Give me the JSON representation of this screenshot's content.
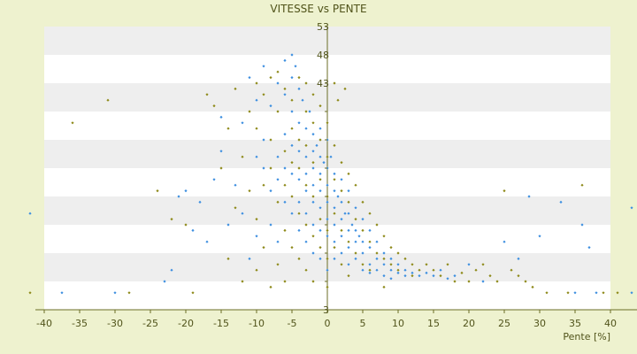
{
  "chart_data": {
    "type": "scatter",
    "title": "VITESSE vs PENTE",
    "xlabel": "Pente [%]",
    "ylabel": "",
    "xlim": [
      -40,
      40
    ],
    "ylim": [
      3,
      53
    ],
    "x_ticks": [
      -40,
      -35,
      -30,
      -25,
      -20,
      -15,
      -10,
      -5,
      0,
      5,
      10,
      15,
      20,
      25,
      30,
      35,
      40
    ],
    "y_ticks": [
      3,
      8,
      13,
      18,
      23,
      28,
      33,
      38,
      43,
      48,
      53
    ],
    "y_tick_labels_shown": [
      3,
      43,
      48,
      53
    ],
    "grid": "horizontal banded",
    "legend": "none",
    "colors": {
      "background": "#eef2cf",
      "plot_band_light": "#ffffff",
      "plot_band_dark": "#eeeeee",
      "axis": "#6b6d25",
      "text": "#50531a",
      "series_blue": "#3d8fe0",
      "series_olive": "#8e8a1a"
    },
    "series": [
      {
        "name": "",
        "color": "#3d8fe0",
        "marker": "diamond",
        "points": [
          [
            -42,
            20
          ],
          [
            -37.5,
            6
          ],
          [
            -30,
            6
          ],
          [
            -23,
            8
          ],
          [
            -22,
            10
          ],
          [
            -21,
            23
          ],
          [
            -20,
            24
          ],
          [
            -19,
            17
          ],
          [
            -18,
            22
          ],
          [
            -17,
            15
          ],
          [
            -16,
            26
          ],
          [
            -15,
            31
          ],
          [
            -15,
            37
          ],
          [
            -14,
            18
          ],
          [
            -13,
            25
          ],
          [
            -12,
            36
          ],
          [
            -12,
            20
          ],
          [
            -11,
            44
          ],
          [
            -11,
            12
          ],
          [
            -10,
            40
          ],
          [
            -10,
            30
          ],
          [
            -10,
            16
          ],
          [
            -9,
            46
          ],
          [
            -9,
            28
          ],
          [
            -9,
            33
          ],
          [
            -8,
            39
          ],
          [
            -8,
            24
          ],
          [
            -8,
            18
          ],
          [
            -7,
            43
          ],
          [
            -7,
            30
          ],
          [
            -7,
            26
          ],
          [
            -7,
            15
          ],
          [
            -6,
            47
          ],
          [
            -6,
            41
          ],
          [
            -6,
            34
          ],
          [
            -6,
            28
          ],
          [
            -6,
            22
          ],
          [
            -5,
            48
          ],
          [
            -5,
            44
          ],
          [
            -5,
            38
          ],
          [
            -5,
            32
          ],
          [
            -5,
            27
          ],
          [
            -5,
            20
          ],
          [
            -4.5,
            46
          ],
          [
            -4,
            42
          ],
          [
            -4,
            36
          ],
          [
            -4,
            31
          ],
          [
            -4,
            26
          ],
          [
            -4,
            22
          ],
          [
            -4,
            17
          ],
          [
            -3.5,
            40
          ],
          [
            -3,
            35
          ],
          [
            -3,
            30
          ],
          [
            -3,
            27
          ],
          [
            -3,
            24
          ],
          [
            -3,
            20
          ],
          [
            -3,
            15
          ],
          [
            -2.5,
            38
          ],
          [
            -2,
            34
          ],
          [
            -2,
            31
          ],
          [
            -2,
            28
          ],
          [
            -2,
            25
          ],
          [
            -2,
            22
          ],
          [
            -2,
            18
          ],
          [
            -2,
            13
          ],
          [
            -1.5,
            32
          ],
          [
            -1,
            35
          ],
          [
            -1,
            30
          ],
          [
            -1,
            27
          ],
          [
            -1,
            24
          ],
          [
            -1,
            21
          ],
          [
            -1,
            17
          ],
          [
            -1,
            12
          ],
          [
            -0.5,
            29
          ],
          [
            0,
            33
          ],
          [
            0,
            28
          ],
          [
            0,
            25
          ],
          [
            0,
            22
          ],
          [
            0,
            19
          ],
          [
            0,
            16
          ],
          [
            0,
            10
          ],
          [
            0.5,
            30
          ],
          [
            1,
            27
          ],
          [
            1,
            24
          ],
          [
            1,
            21
          ],
          [
            1,
            18
          ],
          [
            1,
            15
          ],
          [
            1,
            12
          ],
          [
            1.5,
            23
          ],
          [
            2,
            26
          ],
          [
            2,
            22
          ],
          [
            2,
            19
          ],
          [
            2,
            16
          ],
          [
            2,
            13
          ],
          [
            2.5,
            20
          ],
          [
            3,
            24
          ],
          [
            3,
            20
          ],
          [
            3,
            17
          ],
          [
            3,
            14
          ],
          [
            3,
            11
          ],
          [
            3.5,
            18
          ],
          [
            4,
            21
          ],
          [
            4,
            17
          ],
          [
            4,
            15
          ],
          [
            4,
            12
          ],
          [
            4.5,
            16
          ],
          [
            5,
            19
          ],
          [
            5,
            15
          ],
          [
            5,
            13
          ],
          [
            5,
            10
          ],
          [
            6,
            17
          ],
          [
            6,
            14
          ],
          [
            6,
            11
          ],
          [
            6,
            9.5
          ],
          [
            7,
            15
          ],
          [
            7,
            12
          ],
          [
            7,
            10
          ],
          [
            8,
            13
          ],
          [
            8,
            11
          ],
          [
            8,
            9
          ],
          [
            9,
            12
          ],
          [
            9,
            10
          ],
          [
            9,
            8.5
          ],
          [
            10,
            11
          ],
          [
            10,
            9.5
          ],
          [
            11,
            10
          ],
          [
            11,
            9
          ],
          [
            12,
            9.5
          ],
          [
            13,
            9
          ],
          [
            14,
            9.5
          ],
          [
            15,
            9
          ],
          [
            16,
            10
          ],
          [
            17,
            8.5
          ],
          [
            18,
            9
          ],
          [
            20,
            11
          ],
          [
            22,
            8
          ],
          [
            25,
            15
          ],
          [
            27,
            12
          ],
          [
            28.5,
            23
          ],
          [
            30,
            16
          ],
          [
            33,
            22
          ],
          [
            35,
            6
          ],
          [
            36,
            18
          ],
          [
            37,
            14
          ],
          [
            38,
            6
          ],
          [
            43,
            21
          ],
          [
            43,
            6
          ]
        ]
      },
      {
        "name": "",
        "color": "#8e8a1a",
        "marker": "diamond",
        "points": [
          [
            -42,
            6
          ],
          [
            -36,
            36
          ],
          [
            -31,
            40
          ],
          [
            -28,
            6
          ],
          [
            -24,
            24
          ],
          [
            -22,
            19
          ],
          [
            -20,
            18
          ],
          [
            -19,
            6
          ],
          [
            -17,
            41
          ],
          [
            -16,
            39
          ],
          [
            -15,
            28
          ],
          [
            -14,
            35
          ],
          [
            -14,
            12
          ],
          [
            -13,
            42
          ],
          [
            -13,
            21
          ],
          [
            -12,
            30
          ],
          [
            -12,
            8
          ],
          [
            -11,
            38
          ],
          [
            -11,
            24
          ],
          [
            -10,
            43
          ],
          [
            -10,
            35
          ],
          [
            -10,
            19
          ],
          [
            -10,
            10
          ],
          [
            -9,
            41
          ],
          [
            -9,
            25
          ],
          [
            -9,
            14
          ],
          [
            -8,
            44
          ],
          [
            -8,
            33
          ],
          [
            -8,
            28
          ],
          [
            -8,
            7
          ],
          [
            -7,
            45
          ],
          [
            -7,
            38
          ],
          [
            -7,
            22
          ],
          [
            -7,
            11
          ],
          [
            -6,
            42
          ],
          [
            -6,
            31
          ],
          [
            -6,
            25
          ],
          [
            -6,
            17
          ],
          [
            -6,
            8
          ],
          [
            -5,
            40
          ],
          [
            -5,
            35
          ],
          [
            -5,
            29
          ],
          [
            -5,
            23
          ],
          [
            -5,
            14
          ],
          [
            -4,
            44
          ],
          [
            -4,
            33
          ],
          [
            -4,
            28
          ],
          [
            -4,
            20
          ],
          [
            -4,
            12
          ],
          [
            -3,
            43
          ],
          [
            -3,
            38
          ],
          [
            -3,
            32
          ],
          [
            -3,
            25
          ],
          [
            -3,
            18
          ],
          [
            -3,
            10
          ],
          [
            -2,
            41
          ],
          [
            -2,
            36
          ],
          [
            -2,
            29
          ],
          [
            -2,
            23
          ],
          [
            -2,
            16
          ],
          [
            -2,
            8
          ],
          [
            -1,
            39
          ],
          [
            -1,
            33
          ],
          [
            -1,
            26
          ],
          [
            -1,
            19
          ],
          [
            -1,
            14
          ],
          [
            0,
            36
          ],
          [
            0,
            30
          ],
          [
            0,
            23
          ],
          [
            0,
            17
          ],
          [
            0,
            12
          ],
          [
            0,
            7
          ],
          [
            1,
            43
          ],
          [
            1,
            32
          ],
          [
            1,
            26
          ],
          [
            1,
            20
          ],
          [
            1,
            14
          ],
          [
            1.5,
            40
          ],
          [
            2,
            29
          ],
          [
            2,
            24
          ],
          [
            2,
            17
          ],
          [
            2,
            11
          ],
          [
            2.5,
            42
          ],
          [
            3,
            27
          ],
          [
            3,
            22
          ],
          [
            3,
            15
          ],
          [
            3,
            9
          ],
          [
            4,
            25
          ],
          [
            4,
            19
          ],
          [
            4,
            13
          ],
          [
            5,
            22
          ],
          [
            5,
            17
          ],
          [
            5,
            11
          ],
          [
            6,
            20
          ],
          [
            6,
            15
          ],
          [
            6,
            10
          ],
          [
            7,
            18
          ],
          [
            7,
            13
          ],
          [
            8,
            16
          ],
          [
            8,
            12
          ],
          [
            8,
            7
          ],
          [
            9,
            14
          ],
          [
            9,
            11
          ],
          [
            10,
            13
          ],
          [
            10,
            10
          ],
          [
            11,
            12
          ],
          [
            12,
            11
          ],
          [
            12,
            9
          ],
          [
            13,
            10
          ],
          [
            14,
            11
          ],
          [
            15,
            10
          ],
          [
            16,
            9
          ],
          [
            17,
            11
          ],
          [
            18,
            8
          ],
          [
            19,
            9.5
          ],
          [
            20,
            8
          ],
          [
            21,
            10
          ],
          [
            22,
            11
          ],
          [
            23,
            9
          ],
          [
            24,
            8
          ],
          [
            25,
            24
          ],
          [
            26,
            10
          ],
          [
            27,
            9
          ],
          [
            28,
            8
          ],
          [
            29,
            7
          ],
          [
            31,
            6
          ],
          [
            34,
            6
          ],
          [
            36,
            25
          ],
          [
            39,
            6
          ],
          [
            41,
            6
          ]
        ]
      }
    ]
  }
}
